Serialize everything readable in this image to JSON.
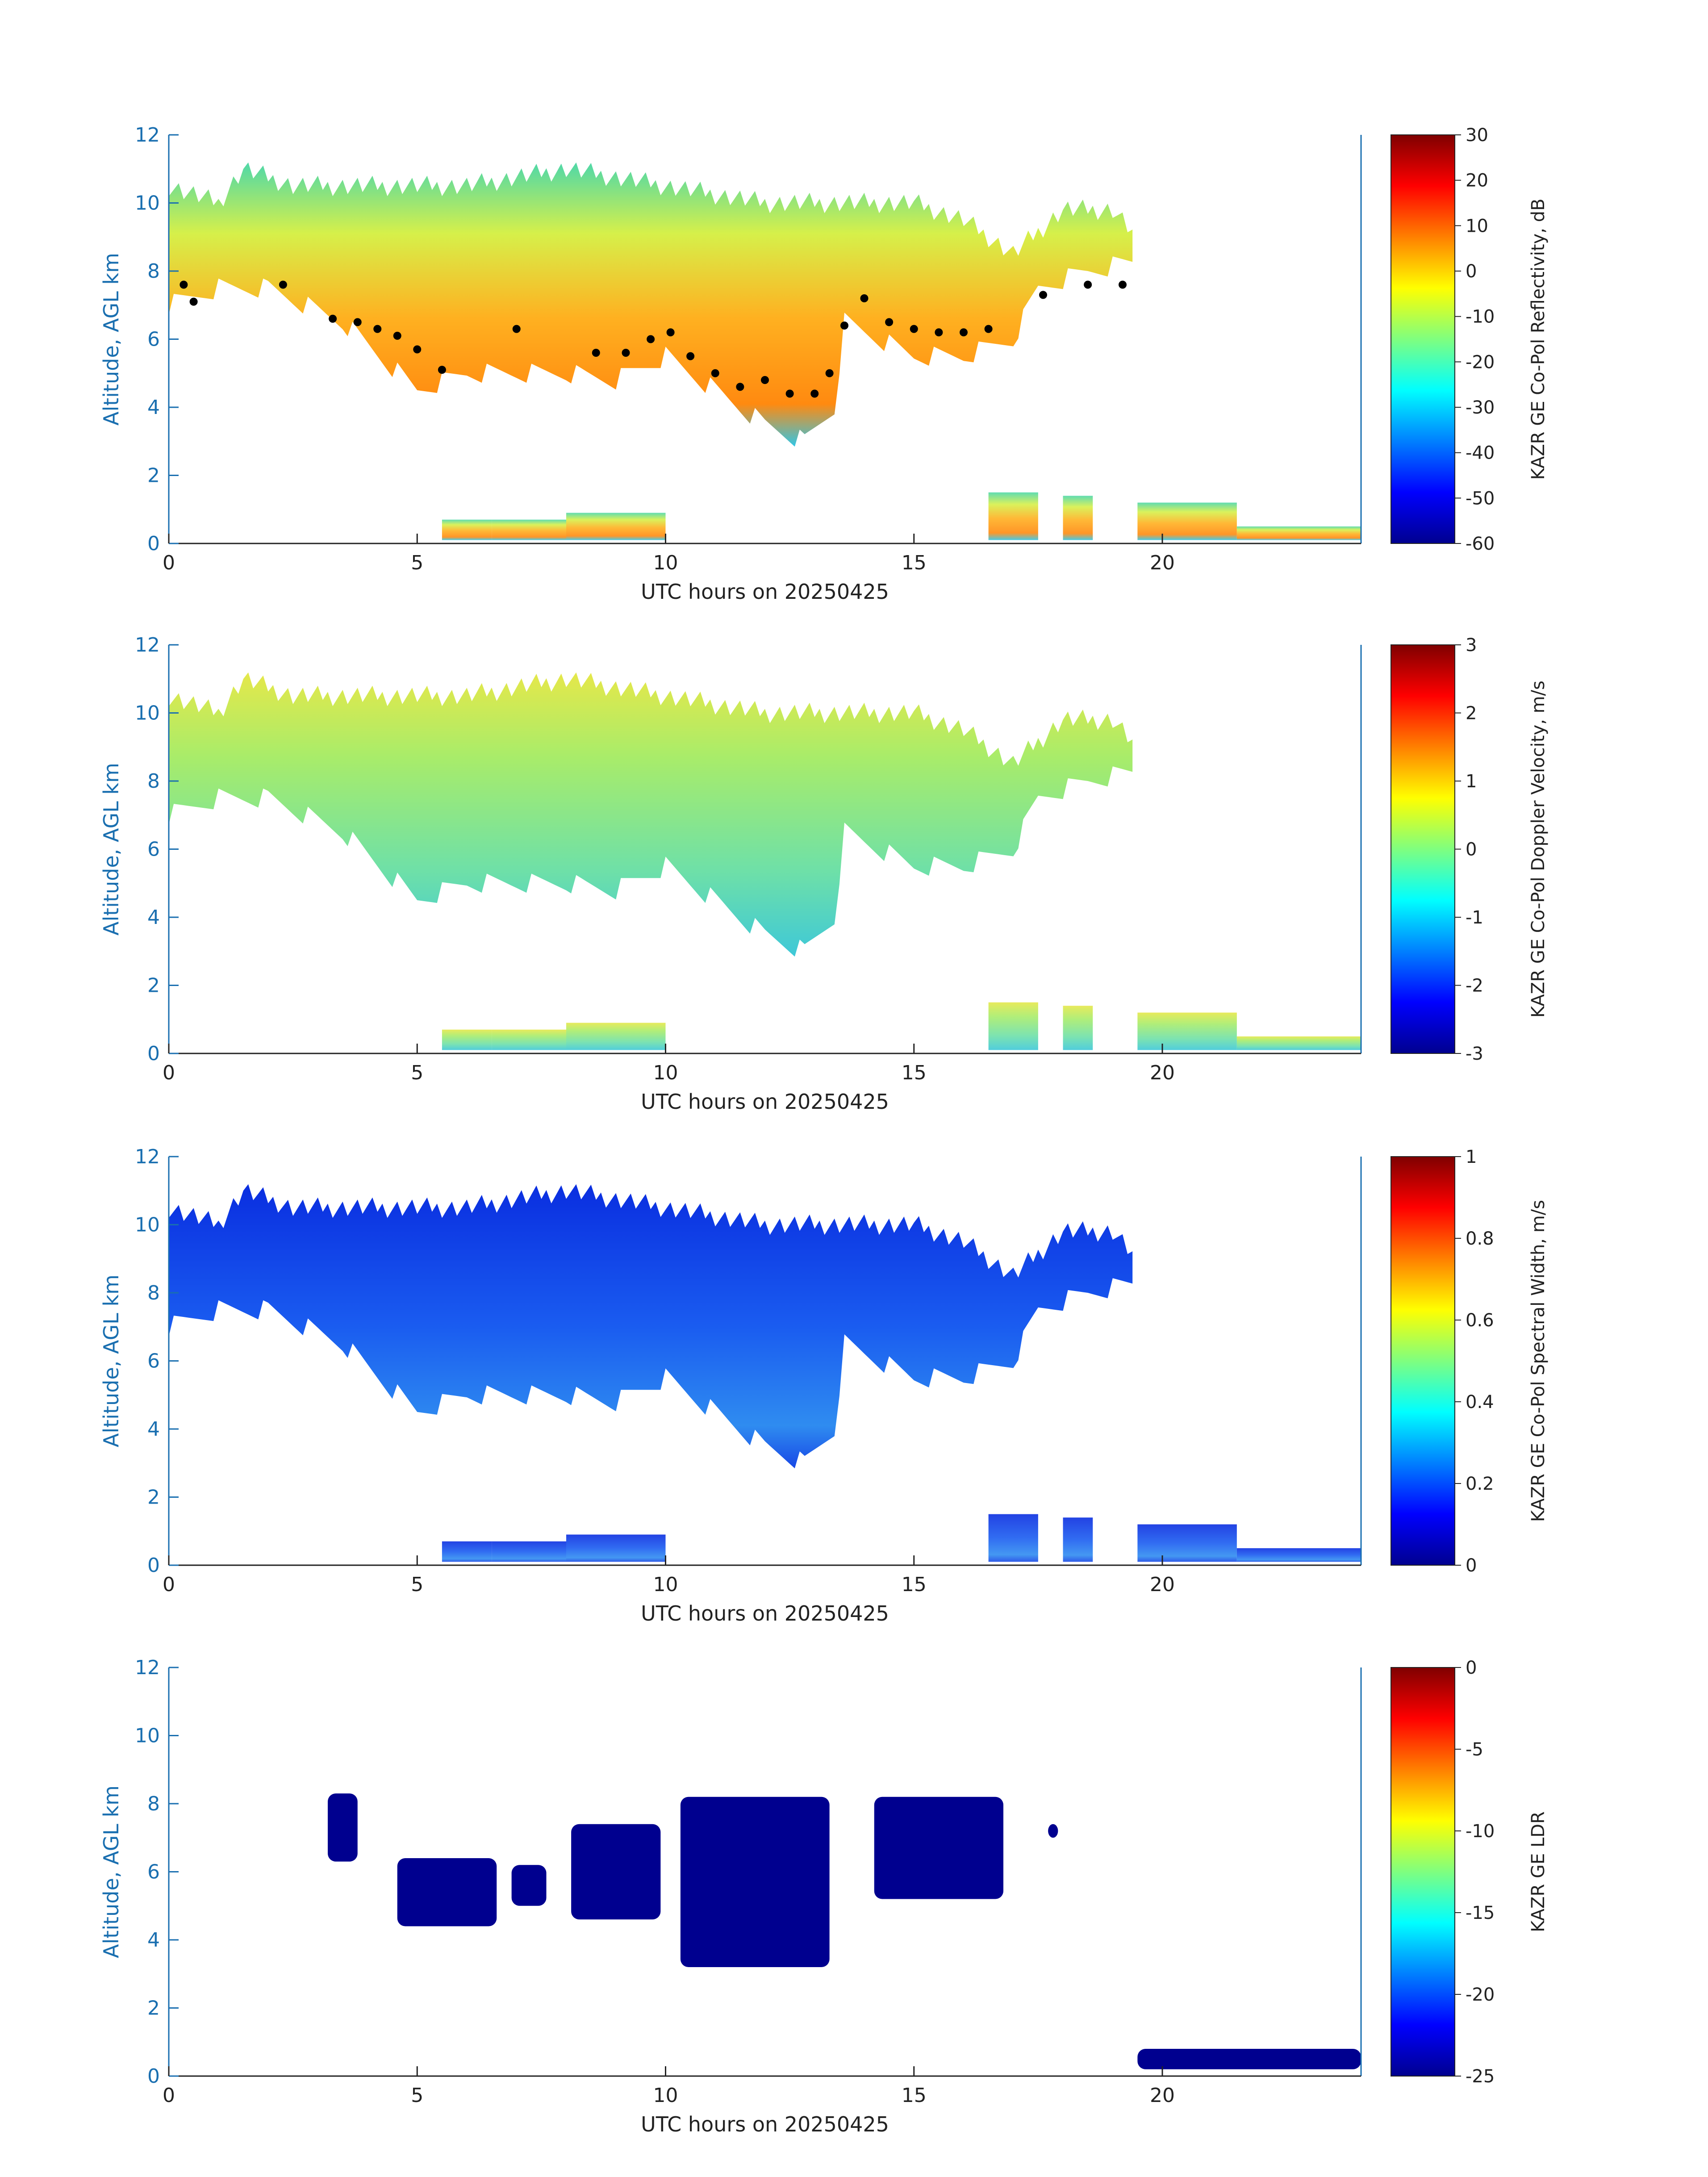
{
  "chart_data": [
    {
      "type": "heatmap",
      "id": "reflectivity",
      "xlabel": "UTC hours on 20250425",
      "ylabel": "Altitude, AGL km",
      "xlim": [
        0,
        24
      ],
      "ylim": [
        0,
        12
      ],
      "xticks": [
        0,
        5,
        10,
        15,
        20
      ],
      "yticks": [
        0,
        2,
        4,
        6,
        8,
        10,
        12
      ],
      "colorbar": {
        "label": "KAZR GE Co-Pol Reflectivity, dB",
        "min": -60,
        "max": 30,
        "ticks": [
          30,
          20,
          10,
          0,
          -10,
          -20,
          -30,
          -40,
          -50,
          -60
        ]
      },
      "cloud_top_km": [
        [
          0,
          10.5
        ],
        [
          1,
          10
        ],
        [
          1.5,
          11
        ],
        [
          2.5,
          10.5
        ],
        [
          4,
          10.5
        ],
        [
          6,
          10.5
        ],
        [
          8,
          11
        ],
        [
          10,
          10.5
        ],
        [
          12,
          10
        ],
        [
          13.5,
          10
        ],
        [
          15,
          10
        ],
        [
          16,
          9.5
        ],
        [
          17,
          8.5
        ],
        [
          18,
          9.8
        ],
        [
          19,
          9.8
        ],
        [
          19.5,
          9
        ]
      ],
      "cloud_base_km": [
        [
          0,
          7
        ],
        [
          1,
          7.5
        ],
        [
          2,
          7.5
        ],
        [
          3.5,
          6.5
        ],
        [
          5,
          4.5
        ],
        [
          6,
          5
        ],
        [
          8,
          5
        ],
        [
          9,
          4.8
        ],
        [
          10,
          5.5
        ],
        [
          11,
          4.5
        ],
        [
          12,
          3.5
        ],
        [
          12.8,
          3
        ],
        [
          13.4,
          4
        ],
        [
          13.6,
          6.5
        ],
        [
          15,
          5.5
        ],
        [
          16,
          5.5
        ],
        [
          17,
          6
        ],
        [
          17.5,
          7.5
        ],
        [
          18.5,
          8
        ],
        [
          19.5,
          8.3
        ]
      ],
      "low_cloud": [
        [
          5.5,
          6.5,
          0.7
        ],
        [
          6.5,
          8,
          0.7
        ],
        [
          8,
          10,
          0.9
        ],
        [
          16.5,
          17.5,
          1.5
        ],
        [
          18,
          18.6,
          1.4
        ],
        [
          19.5,
          21.5,
          1.2
        ],
        [
          21.5,
          24,
          0.5
        ]
      ],
      "cloud_base_points_km": [
        [
          0.3,
          7.6
        ],
        [
          0.5,
          7.1
        ],
        [
          2.3,
          7.6
        ],
        [
          3.3,
          6.6
        ],
        [
          3.8,
          6.5
        ],
        [
          4.2,
          6.3
        ],
        [
          4.6,
          6.1
        ],
        [
          5,
          5.7
        ],
        [
          5.5,
          5.1
        ],
        [
          7,
          6.3
        ],
        [
          8.6,
          5.6
        ],
        [
          9.2,
          5.6
        ],
        [
          9.7,
          6
        ],
        [
          10.1,
          6.2
        ],
        [
          10.5,
          5.5
        ],
        [
          11,
          5
        ],
        [
          11.5,
          4.6
        ],
        [
          12,
          4.8
        ],
        [
          12.5,
          4.4
        ],
        [
          13,
          4.4
        ],
        [
          13.3,
          5
        ],
        [
          13.6,
          6.4
        ],
        [
          14,
          7.2
        ],
        [
          14.5,
          6.5
        ],
        [
          15,
          6.3
        ],
        [
          15.5,
          6.2
        ],
        [
          16,
          6.2
        ],
        [
          16.5,
          6.3
        ],
        [
          17.6,
          7.3
        ],
        [
          18.5,
          7.6
        ],
        [
          19.2,
          7.6
        ]
      ]
    },
    {
      "type": "heatmap",
      "id": "velocity",
      "xlabel": "UTC hours on 20250425",
      "ylabel": "Altitude, AGL km",
      "xlim": [
        0,
        24
      ],
      "ylim": [
        0,
        12
      ],
      "xticks": [
        0,
        5,
        10,
        15,
        20
      ],
      "yticks": [
        0,
        2,
        4,
        6,
        8,
        10,
        12
      ],
      "colorbar": {
        "label": "KAZR GE Co-Pol Doppler Velocity, m/s",
        "min": -3,
        "max": 3,
        "ticks": [
          3,
          2,
          1,
          0,
          -1,
          -2,
          -3
        ]
      }
    },
    {
      "type": "heatmap",
      "id": "spectral_width",
      "xlabel": "UTC hours on 20250425",
      "ylabel": "Altitude, AGL km",
      "xlim": [
        0,
        24
      ],
      "ylim": [
        0,
        12
      ],
      "xticks": [
        0,
        5,
        10,
        15,
        20
      ],
      "yticks": [
        0,
        2,
        4,
        6,
        8,
        10,
        12
      ],
      "colorbar": {
        "label": "KAZR GE Co-Pol Spectral Width, m/s",
        "min": 0,
        "max": 1,
        "ticks": [
          1,
          0.8,
          0.6,
          0.4,
          0.2,
          0
        ]
      }
    },
    {
      "type": "heatmap",
      "id": "ldr",
      "xlabel": "UTC hours on 20250425",
      "ylabel": "Altitude, AGL km",
      "xlim": [
        0,
        24
      ],
      "ylim": [
        0,
        12
      ],
      "xticks": [
        0,
        5,
        10,
        15,
        20
      ],
      "yticks": [
        0,
        2,
        4,
        6,
        8,
        10,
        12
      ],
      "colorbar": {
        "label": "KAZR GE LDR",
        "min": -25,
        "max": 0,
        "ticks": [
          0,
          -5,
          -10,
          -15,
          -20,
          -25
        ]
      },
      "patches": [
        [
          3.2,
          3.8,
          6.3,
          8.3
        ],
        [
          4.6,
          6.6,
          4.4,
          6.4
        ],
        [
          6.9,
          7.6,
          5.0,
          6.2
        ],
        [
          8.1,
          9.9,
          4.6,
          7.4
        ],
        [
          10.3,
          13.3,
          3.2,
          8.2
        ],
        [
          14.2,
          16.8,
          5.2,
          8.2
        ],
        [
          17.7,
          17.9,
          7.0,
          7.4
        ],
        [
          19.5,
          24,
          0.2,
          0.8
        ]
      ]
    }
  ]
}
